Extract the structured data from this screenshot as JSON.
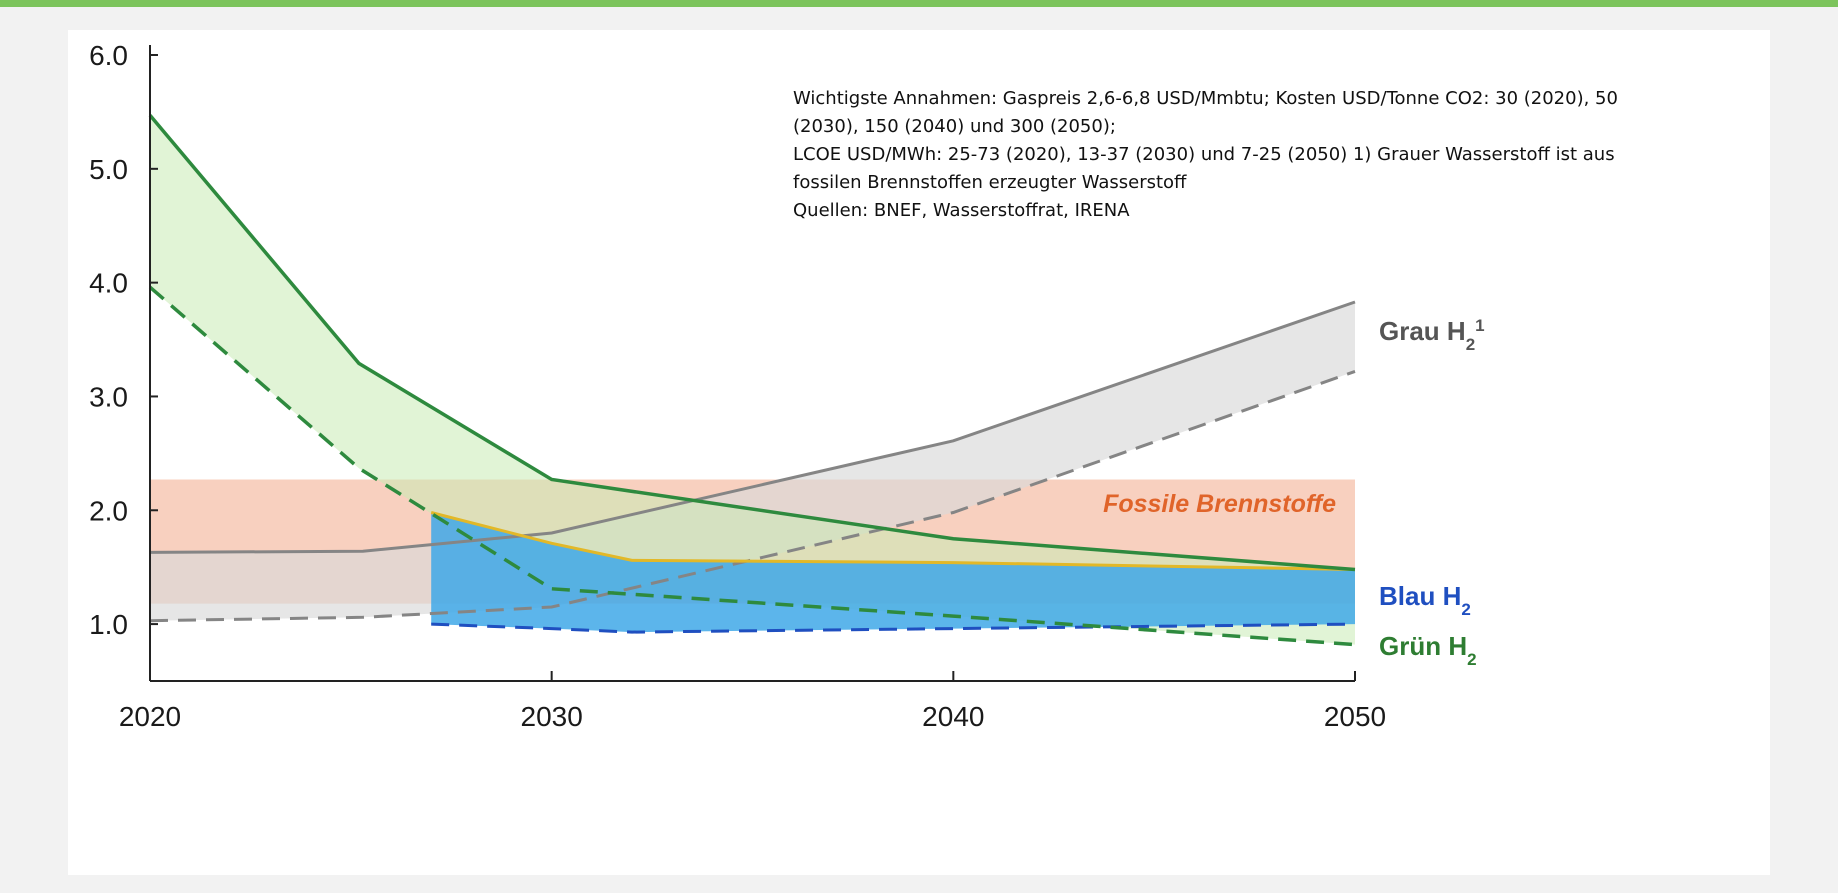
{
  "chart_data": {
    "type": "area",
    "xlim": [
      2020,
      2050
    ],
    "ylim": [
      0.5,
      6.0
    ],
    "x_ticks": [
      "2020",
      "2030",
      "2040",
      "2050"
    ],
    "y_ticks": [
      "1.0",
      "2.0",
      "3.0",
      "4.0",
      "5.0",
      "6.0"
    ],
    "x_tick_values": [
      2020,
      2030,
      2040,
      2050
    ],
    "y_tick_values": [
      1,
      2,
      3,
      4,
      5,
      6
    ],
    "bands": [
      {
        "name": "Fossile Brennstoffe",
        "color": "#f7c8b4",
        "x": [
          2020,
          2050
        ],
        "upper": [
          2.27,
          2.27
        ],
        "lower": [
          1.18,
          1.18
        ]
      },
      {
        "name": "Grau H₂¹",
        "color": "#d8d8d8",
        "line_color": "#858585",
        "x": [
          2020,
          2025.3,
          2030,
          2040,
          2050
        ],
        "upper": [
          1.63,
          1.64,
          1.8,
          2.61,
          3.83
        ],
        "lower": [
          1.03,
          1.06,
          1.15,
          1.98,
          3.22
        ]
      },
      {
        "name": "Blau H₂",
        "color": "#3fa8e8",
        "line_color": "#1f4fc0",
        "edge_color": "#e2b828",
        "x": [
          2027,
          2030,
          2032,
          2040,
          2050
        ],
        "upper": [
          1.98,
          1.71,
          1.56,
          1.54,
          1.48
        ],
        "lower": [
          1.0,
          0.96,
          0.93,
          0.96,
          1.0
        ]
      },
      {
        "name": "Grün H₂",
        "color": "#c9ebb5",
        "line_color": "#2e8a3e",
        "x": [
          2020,
          2025.2,
          2030,
          2040,
          2050
        ],
        "upper": [
          5.47,
          3.29,
          2.27,
          1.75,
          1.48
        ],
        "lower": [
          3.96,
          2.37,
          1.31,
          1.07,
          0.82
        ]
      }
    ],
    "series_labels": {
      "grau": {
        "main": "Grau H",
        "sub": "2",
        "sup": "1",
        "color": "#555555"
      },
      "blau": {
        "main": "Blau H",
        "sub": "2",
        "color": "#1f4fc0"
      },
      "gruen": {
        "main": "Grün H",
        "sub": "2",
        "color": "#2e7d32"
      },
      "fossil": {
        "main": "Fossile Brennstoffe",
        "color": "#e0642a"
      }
    },
    "annotation": [
      "Wichtigste Annahmen: Gaspreis 2,6-6,8 USD/Mmbtu; Kosten USD/Tonne CO2: 30 (2020), 50",
      "(2030), 150 (2040) und 300 (2050);",
      "LCOE USD/MWh: 25-73 (2020), 13-37 (2030) und 7-25 (2050) 1) Grauer Wasserstoff ist aus",
      "fossilen Brennstoffen erzeugter Wasserstoff",
      "Quellen: BNEF, Wasserstoffrat, IRENA"
    ]
  }
}
